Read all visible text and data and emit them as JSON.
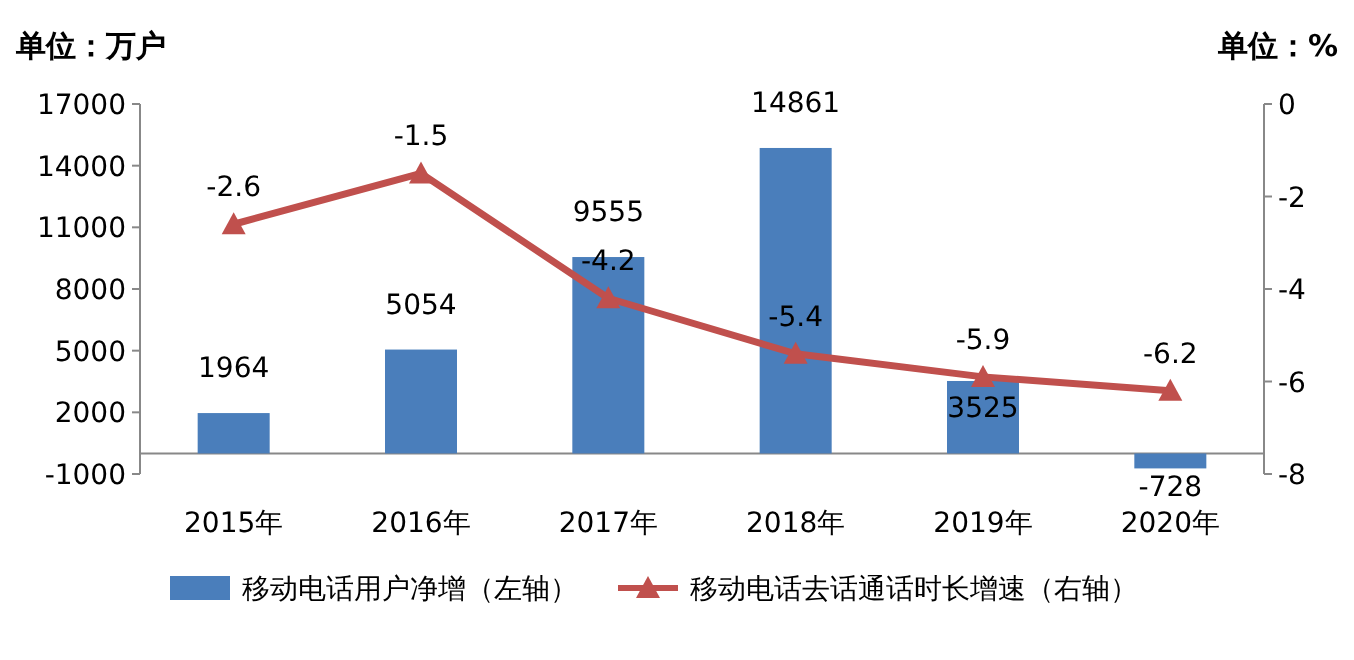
{
  "chart_data": {
    "type": "bar",
    "ylabel": "单位：万户",
    "y2label": "单位：%",
    "categories": [
      "2015年",
      "2016年",
      "2017年",
      "2018年",
      "2019年",
      "2020年"
    ],
    "series": [
      {
        "name": "移动电话用户净增（左轴）",
        "type": "bar",
        "color": "#4a7ebb",
        "values": [
          1964,
          5054,
          9555,
          14861,
          3525,
          -728
        ]
      },
      {
        "name": "移动电话去话通话时长增速（右轴）",
        "type": "line",
        "axis": "y2",
        "color": "#c0504d",
        "marker": "triangle",
        "values": [
          -2.6,
          -1.5,
          -4.2,
          -5.4,
          -5.9,
          -6.2
        ]
      }
    ],
    "ylim": [
      -1000,
      17000
    ],
    "yticks": [
      -1000,
      2000,
      5000,
      8000,
      11000,
      14000,
      17000
    ],
    "y2lim": [
      -8,
      0
    ],
    "y2ticks": [
      -8,
      -6,
      -4,
      -2,
      0
    ],
    "data_labels": true,
    "legend": "bottom",
    "grid": false
  }
}
